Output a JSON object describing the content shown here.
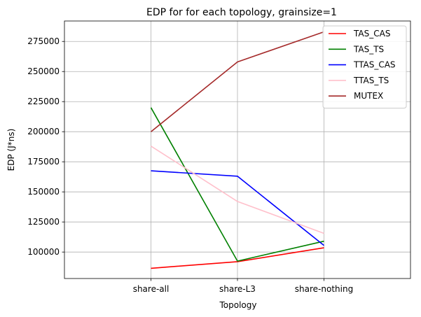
{
  "chart_data": {
    "type": "line",
    "title": "EDP for for each topology, grainsize=1",
    "xlabel": "Topology",
    "ylabel": "EDP (J*ns)",
    "categories": [
      "share-all",
      "share-L3",
      "share-nothing"
    ],
    "x_range": [
      -1,
      3
    ],
    "ylim": [
      78000,
      292000
    ],
    "yticks": [
      100000,
      125000,
      150000,
      175000,
      200000,
      225000,
      250000,
      275000
    ],
    "grid": true,
    "legend_position": "top-right",
    "series": [
      {
        "name": "TAS_CAS",
        "color": "#ff0000",
        "values": [
          86500,
          92000,
          103500
        ]
      },
      {
        "name": "TAS_TS",
        "color": "#008000",
        "values": [
          220000,
          92500,
          109000
        ]
      },
      {
        "name": "TTAS_CAS",
        "color": "#0000ff",
        "values": [
          167500,
          163000,
          105500
        ]
      },
      {
        "name": "TTAS_TS",
        "color": "#ffc0cb",
        "values": [
          188000,
          142000,
          115500
        ]
      },
      {
        "name": "MUTEX",
        "color": "#a52a2a",
        "values": [
          200000,
          258000,
          283000
        ]
      }
    ]
  }
}
